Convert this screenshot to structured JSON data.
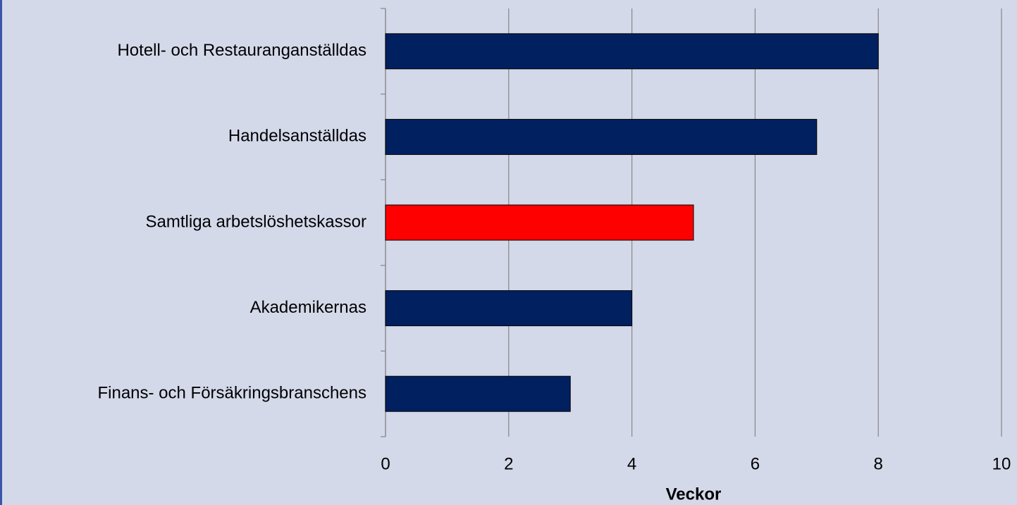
{
  "chart_data": {
    "type": "barh",
    "categories": [
      "Hotell- och Restauranganställdas",
      "Handelsanställdas",
      "Samtliga arbetslöshetskassor",
      "Akademikernas",
      "Finans- och Försäkringsbranschens"
    ],
    "values": [
      8,
      7,
      5,
      4,
      3
    ],
    "colors": [
      "#002060",
      "#002060",
      "#ff0000",
      "#002060",
      "#002060"
    ],
    "xlabel": "Veckor",
    "xlim": [
      0,
      10
    ],
    "xticks": [
      0,
      2,
      4,
      6,
      8,
      10
    ],
    "grid": true
  }
}
